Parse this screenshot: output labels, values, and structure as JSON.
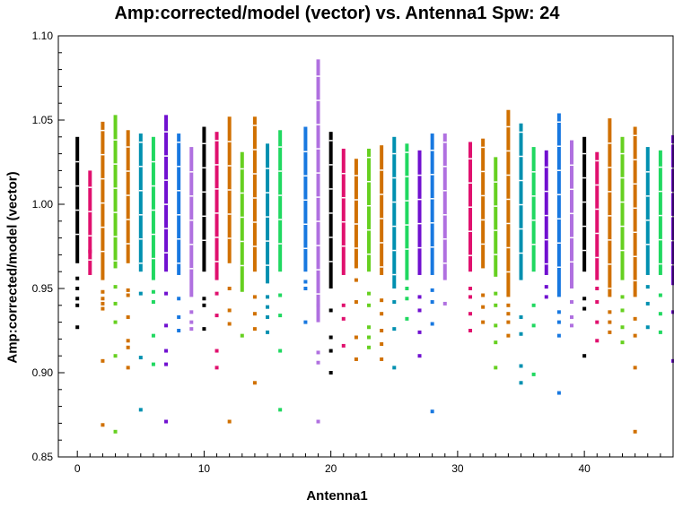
{
  "chart_data": {
    "type": "scatter",
    "title": "Amp:corrected/model (vector) vs. Antenna1 Spw: 24",
    "xlabel": "Antenna1",
    "ylabel": "Amp:corrected/model (vector)",
    "xlim": [
      -1.5,
      47
    ],
    "ylim": [
      0.85,
      1.1
    ],
    "xticks": [
      "0",
      "10",
      "20",
      "30",
      "40"
    ],
    "yticks": [
      "0.85",
      "0.90",
      "0.95",
      "1.00",
      "1.05",
      "1.10"
    ],
    "grid": false,
    "colors": [
      "#000000",
      "#e0106e",
      "#d07000",
      "#66d020",
      "#0090b0",
      "#20d860",
      "#7010d0",
      "#b070e0",
      "#1878e0"
    ],
    "series": [
      {
        "x": 0,
        "color": "#000000",
        "bar": [
          0.965,
          1.04
        ],
        "outliers": [
          0.927,
          0.94,
          0.944,
          0.95,
          0.956
        ]
      },
      {
        "x": 1,
        "color": "#e0106e",
        "bar": [
          0.958,
          1.02
        ],
        "outliers": [
          0.972
        ]
      },
      {
        "x": 2,
        "color": "#d07000",
        "bar": [
          0.955,
          1.049
        ],
        "outliers": [
          0.869,
          0.907,
          0.938,
          0.941,
          0.944,
          0.948
        ]
      },
      {
        "x": 3,
        "color": "#66d020",
        "bar": [
          0.962,
          1.053
        ],
        "outliers": [
          0.865,
          0.91,
          0.93,
          0.941,
          0.951
        ]
      },
      {
        "x": 4,
        "color": "#d07000",
        "bar": [
          0.965,
          1.044
        ],
        "outliers": [
          0.903,
          0.915,
          0.919,
          0.933,
          0.946,
          0.949
        ]
      },
      {
        "x": 5,
        "color": "#0090b0",
        "bar": [
          0.96,
          1.042
        ],
        "outliers": [
          0.878,
          0.909,
          0.947
        ]
      },
      {
        "x": 6,
        "color": "#20d860",
        "bar": [
          0.955,
          1.04
        ],
        "outliers": [
          0.905,
          0.922,
          0.942,
          0.948
        ]
      },
      {
        "x": 7,
        "color": "#7010d0",
        "bar": [
          0.96,
          1.053
        ],
        "outliers": [
          0.871,
          0.905,
          0.913,
          0.928,
          0.947
        ]
      },
      {
        "x": 8,
        "color": "#1878e0",
        "bar": [
          0.958,
          1.042
        ],
        "outliers": [
          0.925,
          0.933,
          0.944
        ]
      },
      {
        "x": 9,
        "color": "#b070e0",
        "bar": [
          0.945,
          1.034
        ],
        "outliers": [
          0.926,
          0.93,
          0.936
        ]
      },
      {
        "x": 10,
        "color": "#000000",
        "bar": [
          0.96,
          1.046
        ],
        "outliers": [
          0.926,
          0.94,
          0.944
        ]
      },
      {
        "x": 11,
        "color": "#e0106e",
        "bar": [
          0.955,
          1.043
        ],
        "outliers": [
          0.903,
          0.913,
          0.934,
          0.947
        ]
      },
      {
        "x": 12,
        "color": "#d07000",
        "bar": [
          0.965,
          1.052
        ],
        "outliers": [
          0.871,
          0.929,
          0.937,
          0.95
        ]
      },
      {
        "x": 13,
        "color": "#66d020",
        "bar": [
          0.948,
          1.031
        ],
        "outliers": [
          0.922
        ]
      },
      {
        "x": 14,
        "color": "#d07000",
        "bar": [
          0.96,
          1.052
        ],
        "outliers": [
          0.894,
          0.926,
          0.935,
          0.945
        ]
      },
      {
        "x": 15,
        "color": "#0090b0",
        "bar": [
          0.953,
          1.036
        ],
        "outliers": [
          0.924,
          0.933,
          0.939,
          0.945
        ]
      },
      {
        "x": 16,
        "color": "#20d860",
        "bar": [
          0.96,
          1.044
        ],
        "outliers": [
          0.878,
          0.913,
          0.934,
          0.946
        ]
      },
      {
        "x": 18,
        "color": "#1878e0",
        "bar": [
          0.96,
          1.046
        ],
        "outliers": [
          0.93,
          0.95,
          0.954
        ]
      },
      {
        "x": 19,
        "color": "#b070e0",
        "bar": [
          0.93,
          1.086
        ],
        "outliers": [
          0.871,
          0.906,
          0.912,
          0.94
        ]
      },
      {
        "x": 20,
        "color": "#000000",
        "bar": [
          0.95,
          1.043
        ],
        "outliers": [
          0.9,
          0.913,
          0.921,
          0.937
        ]
      },
      {
        "x": 21,
        "color": "#e0106e",
        "bar": [
          0.958,
          1.033
        ],
        "outliers": [
          0.916,
          0.932,
          0.94
        ]
      },
      {
        "x": 22,
        "color": "#d07000",
        "bar": [
          0.962,
          1.027
        ],
        "outliers": [
          0.908,
          0.921,
          0.942,
          0.955
        ]
      },
      {
        "x": 23,
        "color": "#66d020",
        "bar": [
          0.96,
          1.033
        ],
        "outliers": [
          0.915,
          0.921,
          0.927,
          0.94,
          0.947
        ]
      },
      {
        "x": 24,
        "color": "#d07000",
        "bar": [
          0.958,
          1.035
        ],
        "outliers": [
          0.908,
          0.917,
          0.925,
          0.935,
          0.943
        ]
      },
      {
        "x": 25,
        "color": "#0090b0",
        "bar": [
          0.95,
          1.04
        ],
        "outliers": [
          0.903,
          0.926,
          0.942
        ]
      },
      {
        "x": 26,
        "color": "#20d860",
        "bar": [
          0.955,
          1.036
        ],
        "outliers": [
          0.932,
          0.944,
          0.95
        ]
      },
      {
        "x": 27,
        "color": "#7010d0",
        "bar": [
          0.958,
          1.032
        ],
        "outliers": [
          0.91,
          0.924,
          0.937,
          0.945
        ]
      },
      {
        "x": 28,
        "color": "#1878e0",
        "bar": [
          0.958,
          1.042
        ],
        "outliers": [
          0.877,
          0.929,
          0.942,
          0.949
        ]
      },
      {
        "x": 29,
        "color": "#b070e0",
        "bar": [
          0.955,
          1.042
        ],
        "outliers": [
          0.941
        ]
      },
      {
        "x": 31,
        "color": "#e0106e",
        "bar": [
          0.96,
          1.037
        ],
        "outliers": [
          0.925,
          0.935,
          0.945,
          0.95
        ]
      },
      {
        "x": 32,
        "color": "#d07000",
        "bar": [
          0.962,
          1.039
        ],
        "outliers": [
          0.93,
          0.939,
          0.946
        ]
      },
      {
        "x": 33,
        "color": "#66d020",
        "bar": [
          0.957,
          1.028
        ],
        "outliers": [
          0.903,
          0.918,
          0.928,
          0.94,
          0.947
        ]
      },
      {
        "x": 34,
        "color": "#d07000",
        "bar": [
          0.945,
          1.056
        ],
        "outliers": [
          0.922,
          0.93,
          0.935,
          0.94
        ]
      },
      {
        "x": 35,
        "color": "#0090b0",
        "bar": [
          0.955,
          1.048
        ],
        "outliers": [
          0.894,
          0.904,
          0.923,
          0.933
        ]
      },
      {
        "x": 36,
        "color": "#20d860",
        "bar": [
          0.96,
          1.034
        ],
        "outliers": [
          0.899,
          0.928,
          0.94
        ]
      },
      {
        "x": 37,
        "color": "#7010d0",
        "bar": [
          0.958,
          1.032
        ],
        "outliers": [
          0.945,
          0.951
        ]
      },
      {
        "x": 38,
        "color": "#1878e0",
        "bar": [
          0.945,
          1.054
        ],
        "outliers": [
          0.888,
          0.922,
          0.93,
          0.936
        ]
      },
      {
        "x": 39,
        "color": "#b070e0",
        "bar": [
          0.95,
          1.038
        ],
        "outliers": [
          0.928,
          0.933,
          0.942
        ]
      },
      {
        "x": 40,
        "color": "#000000",
        "bar": [
          0.96,
          1.04
        ],
        "outliers": [
          0.91,
          0.938,
          0.944
        ]
      },
      {
        "x": 41,
        "color": "#e0106e",
        "bar": [
          0.955,
          1.031
        ],
        "outliers": [
          0.919,
          0.93,
          0.942,
          0.95
        ]
      },
      {
        "x": 42,
        "color": "#d07000",
        "bar": [
          0.945,
          1.051
        ],
        "outliers": [
          0.924,
          0.93,
          0.936
        ]
      },
      {
        "x": 43,
        "color": "#66d020",
        "bar": [
          0.955,
          1.04
        ],
        "outliers": [
          0.918,
          0.927,
          0.937,
          0.945
        ]
      },
      {
        "x": 44,
        "color": "#d07000",
        "bar": [
          0.945,
          1.046
        ],
        "outliers": [
          0.865,
          0.903,
          0.922,
          0.932
        ]
      },
      {
        "x": 45,
        "color": "#0090b0",
        "bar": [
          0.958,
          1.034
        ],
        "outliers": [
          0.927,
          0.941,
          0.951
        ]
      },
      {
        "x": 46,
        "color": "#20d860",
        "bar": [
          0.958,
          1.032
        ],
        "outliers": [
          0.924,
          0.935,
          0.946
        ]
      },
      {
        "x": 47,
        "color": "#7010d0",
        "bar": [
          0.952,
          1.041
        ],
        "outliers": [
          0.907,
          0.936
        ]
      }
    ]
  }
}
